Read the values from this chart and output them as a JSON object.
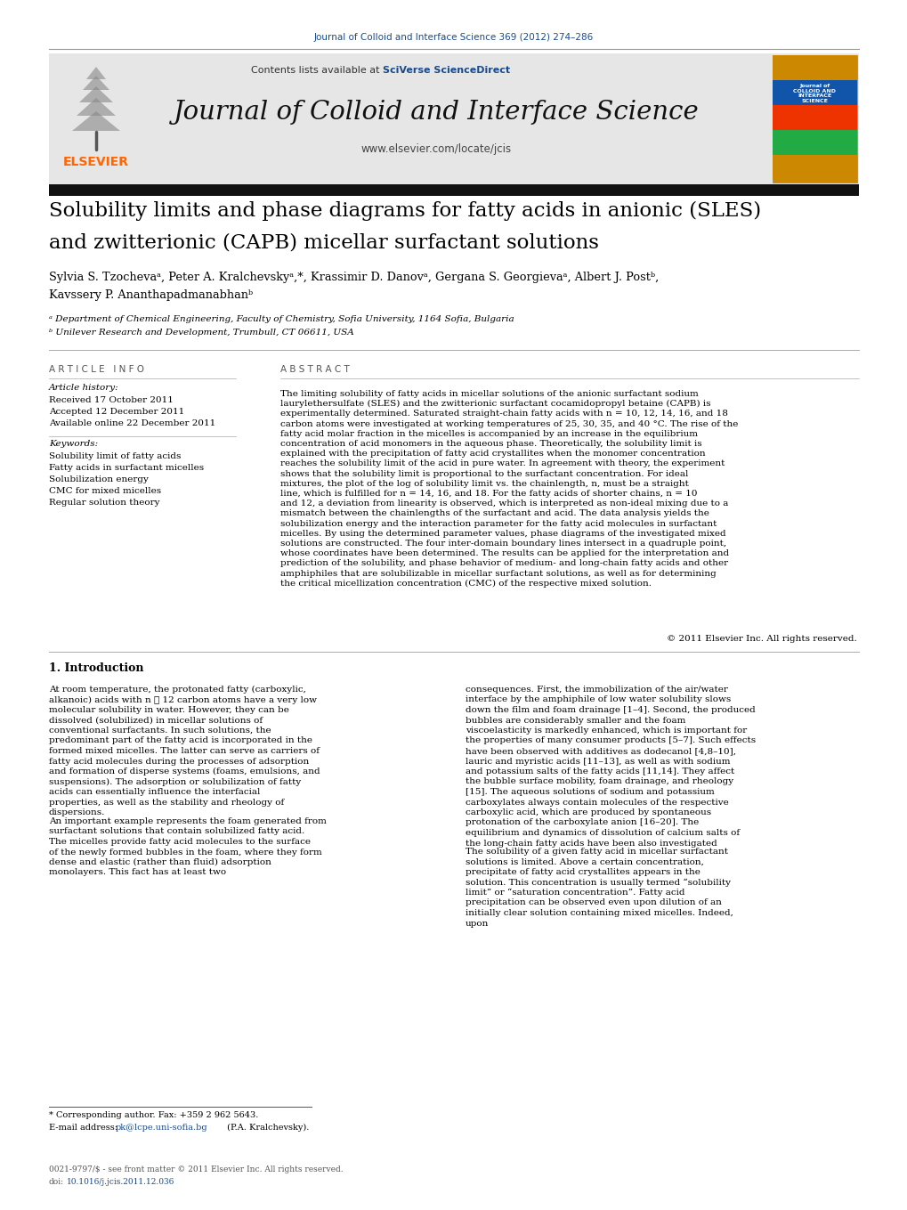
{
  "fig_width": 10.2,
  "fig_height": 13.59,
  "journal_ref": "Journal of Colloid and Interface Science 369 (2012) 274–286",
  "journal_ref_color": "#1a4a8a",
  "header_bg_color": "#e6e6e6",
  "sciverse_color": "#1a4a8a",
  "journal_name": "Journal of Colloid and Interface Science",
  "website": "www.elsevier.com/locate/jcis",
  "elsevier_color": "#FF6600",
  "title_line1": "Solubility limits and phase diagrams for fatty acids in anionic (SLES)",
  "title_line2": "and zwitterionic (CAPB) micellar surfactant solutions",
  "title_fontsize": 16.5,
  "author_line1": "Sylvia S. Tzochevaᵃ, Peter A. Kralchevskyᵃ,*, Krassimir D. Danovᵃ, Gergana S. Georgievaᵃ, Albert J. Postᵇ,",
  "author_line2": "Kavssery P. Ananthapadmanabhanᵇ",
  "affil1": "ᵃ Department of Chemical Engineering, Faculty of Chemistry, Sofia University, 1164 Sofia, Bulgaria",
  "affil2": "ᵇ Unilever Research and Development, Trumbull, CT 06611, USA",
  "article_info_header": "A R T I C L E   I N F O",
  "article_history_label": "Article history:",
  "received": "Received 17 October 2011",
  "accepted": "Accepted 12 December 2011",
  "available": "Available online 22 December 2011",
  "keywords_label": "Keywords:",
  "keywords": [
    "Solubility limit of fatty acids",
    "Fatty acids in surfactant micelles",
    "Solubilization energy",
    "CMC for mixed micelles",
    "Regular solution theory"
  ],
  "abstract_header": "A B S T R A C T",
  "abstract_text": "The limiting solubility of fatty acids in micellar solutions of the anionic surfactant sodium laurylethersulfate (SLES) and the zwitterionic surfactant cocamidopropyl betaine (CAPB) is experimentally determined. Saturated straight-chain fatty acids with n = 10, 12, 14, 16, and 18 carbon atoms were investigated at working temperatures of 25, 30, 35, and 40 °C. The rise of the fatty acid molar fraction in the micelles is accompanied by an increase in the equilibrium concentration of acid monomers in the aqueous phase. Theoretically, the solubility limit is explained with the precipitation of fatty acid crystallites when the monomer concentration reaches the solubility limit of the acid in pure water. In agreement with theory, the experiment shows that the solubility limit is proportional to the surfactant concentration. For ideal mixtures, the plot of the log of solubility limit vs. the chainlength, n, must be a straight line, which is fulfilled for n = 14, 16, and 18. For the fatty acids of shorter chains, n = 10 and 12, a deviation from linearity is observed, which is interpreted as non-ideal mixing due to a mismatch between the chainlengths of the surfactant and acid. The data analysis yields the solubilization energy and the interaction parameter for the fatty acid molecules in surfactant micelles. By using the determined parameter values, phase diagrams of the investigated mixed solutions are constructed. The four inter-domain boundary lines intersect in a quadruple point, whose coordinates have been determined. The results can be applied for the interpretation and prediction of the solubility, and phase behavior of medium- and long-chain fatty acids and other amphiphiles that are solubilizable in micellar surfactant solutions, as well as for determining the critical micellization concentration (CMC) of the respective mixed solution.",
  "copyright": "© 2011 Elsevier Inc. All rights reserved.",
  "intro_header": "1. Introduction",
  "intro_left1": "At room temperature, the protonated fatty (carboxylic, alkanoic) acids with n ⩾ 12 carbon atoms have a very low molecular solubility in water. However, they can be dissolved (solubilized) in micellar solutions of conventional surfactants. In such solutions, the predominant part of the fatty acid is incorporated in the formed mixed micelles. The latter can serve as carriers of fatty acid molecules during the processes of adsorption and formation of disperse systems (foams, emulsions, and suspensions). The adsorption or solubilization of fatty acids can essentially influence the interfacial properties, as well as the stability and rheology of dispersions.",
  "intro_left2": "An important example represents the foam generated from surfactant solutions that contain solubilized fatty acid. The micelles provide fatty acid molecules to the surface of the newly formed bubbles in the foam, where they form dense and elastic (rather than fluid) adsorption monolayers. This fact has at least two",
  "intro_right1": "consequences. First, the immobilization of the air/water interface by the amphiphile of low water solubility slows down the film and foam drainage [1–4]. Second, the produced bubbles are considerably smaller and the foam viscoelasticity is markedly enhanced, which is important for the properties of many consumer products [5–7]. Such effects have been observed with additives as dodecanol [4,8–10], lauric and myristic acids [11–13], as well as with sodium and potassium salts of the fatty acids [11,14]. They affect the bubble surface mobility, foam drainage, and rheology [15]. The aqueous solutions of sodium and potassium carboxylates always contain molecules of the respective carboxylic acid, which are produced by spontaneous protonation of the carboxylate anion [16–20]. The equilibrium and dynamics of dissolution of calcium salts of the long-chain fatty acids have been also investigated [21,22].",
  "intro_right2": "The solubility of a given fatty acid in micellar surfactant solutions is limited. Above a certain concentration, precipitate of fatty acid crystallites appears in the solution. This concentration is usually termed “solubility limit” or “saturation concentration”. Fatty acid precipitation can be observed even upon dilution of an initially clear solution containing mixed micelles. Indeed, upon",
  "footnote_corr": "* Corresponding author. Fax: +359 2 962 5643.",
  "footnote_email_pre": "E-mail address: ",
  "footnote_email": "pk@lcpe.uni-sofia.bg",
  "footnote_email_post": " (P.A. Kralchevsky).",
  "email_color": "#1a4a8a",
  "issn_line": "0021-9797/$ - see front matter © 2011 Elsevier Inc. All rights reserved.",
  "doi_pre": "doi:",
  "doi_link": "10.1016/j.jcis.2011.12.036",
  "doi_color": "#1a4a8a"
}
